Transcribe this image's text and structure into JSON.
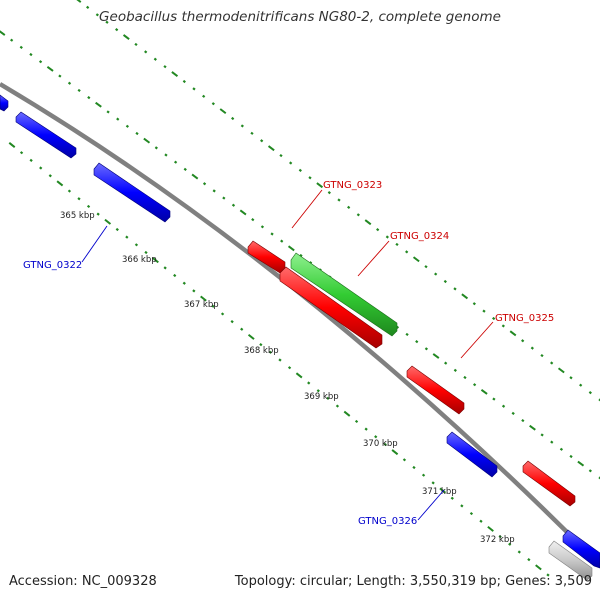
{
  "header": {
    "title": "Geobacillus thermodenitrificans NG80-2, complete genome"
  },
  "footer": {
    "accession": "Accession: NC_009328",
    "summary": "Topology: circular; Length: 3,550,319 bp; Genes: 3,509"
  },
  "colors": {
    "forward_strand": "#ff0000",
    "reverse_strand": "#0000ff",
    "rna": "#33cc33",
    "other": "#c8c8c8",
    "backbone": "#808080",
    "ticks": "#228822"
  },
  "kbp_labels": [
    "365 kbp",
    "366 kbp",
    "367 kbp",
    "368 kbp",
    "369 kbp",
    "370 kbp",
    "371 kbp",
    "372 kbp"
  ],
  "gene_labels": [
    {
      "name": "GTNG_0322",
      "color": "#0000cc"
    },
    {
      "name": "GTNG_0323",
      "color": "#cc0000"
    },
    {
      "name": "GTNG_0324",
      "color": "#cc0000"
    },
    {
      "name": "GTNG_0325",
      "color": "#cc0000"
    },
    {
      "name": "GTNG_0326",
      "color": "#0000cc"
    }
  ]
}
